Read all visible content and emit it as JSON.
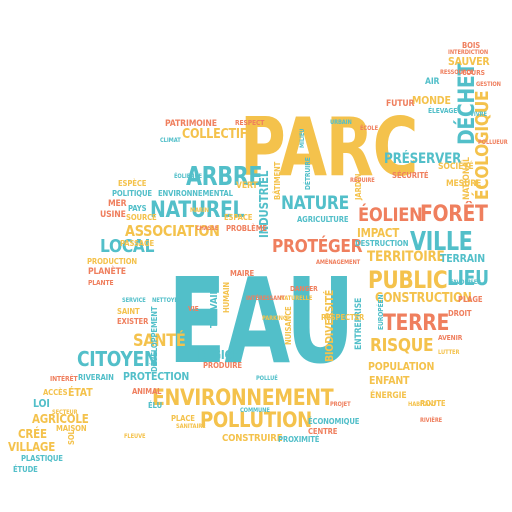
{
  "palette": {
    "yellow": "#f4c24c",
    "teal": "#52bfc9",
    "orange": "#ef7f5e"
  },
  "words": {
    "parc": "PARC",
    "eau": "EAU",
    "environnement": "ENVIRONNEMENT",
    "pollution": "POLLUTION",
    "naturel": "NATUREL",
    "arbre": "ARBRE",
    "nature": "NATURE",
    "association": "ASSOCIATION",
    "local": "LOCAL",
    "citoyen": "CITOYEN",
    "sante": "SANTÉ",
    "proteger": "PROTÉGER",
    "public": "PUBLIC",
    "lieu": "LIEU",
    "terre": "TERRE",
    "risque": "RISQUE",
    "ville": "VILLE",
    "foret": "FORÊT",
    "eolien": "ÉOLIEN",
    "dechet": "DÉCHET",
    "ecologique": "ÉCOLOGIQUE",
    "preserver": "PRÉSERVER",
    "territoire": "TERRITOIRE",
    "terrain": "TERRAIN",
    "construction": "CONSTRUCTION",
    "population": "POPULATION",
    "enfant": "ENFANT",
    "collectif": "COLLECTIF",
    "patrimoine": "PATRIMOINE",
    "industriel": "INDUSTRIEL",
    "biodiversite": "BIODIVERSITÉ",
    "entreprise": "ENTREPRISE",
    "region": "RÉGION",
    "protection": "PROTECTION",
    "agricole": "AGRICOLE",
    "village": "VILLAGE",
    "cree": "CRÉE",
    "loi": "LOI",
    "etat": "ÉTAT",
    "plastique": "PLASTIQUE",
    "etude": "ÉTUDE",
    "sauver": "SAUVER",
    "monde": "MONDE",
    "futur": "FUTUR",
    "impact": "IMPACT",
    "destruction": "DESTRUCTION",
    "planete": "PLANÈTE",
    "production": "PRODUCTION",
    "espece": "ESPÈCE",
    "politique": "POLITIQUE",
    "mer": "MER",
    "usine": "USINE",
    "pays": "PAYS",
    "source": "SOURCE",
    "environnemental": "ENVIRONNEMENTAL",
    "travail": "TRAVAIL",
    "mesure": "MESURE",
    "societe": "SOCIÉTÉ",
    "securite": "SÉCURITÉ",
    "respecter": "RESPECTER",
    "jardin": "JARDIN",
    "economique": "ÉCONOMIQUE",
    "centre": "CENTRE",
    "energie": "ÉNERGIE",
    "route": "ROUTE",
    "plage": "PLAGE",
    "droit": "DROIT",
    "air": "AIR",
    "bois": "BOIS",
    "riverain": "RIVERAIN",
    "acces": "ACCÈS",
    "interet": "INTÉRÊT",
    "maison": "MAISON",
    "sol": "SOL",
    "saint": "SAINT",
    "exister": "EXISTER",
    "developpement": "DÉVELOPPEMENT",
    "animal": "ANIMAL",
    "elu": "ÉLU",
    "place": "PLACE",
    "construire": "CONSTRUIRE",
    "proximite": "PROXIMITÉ",
    "produire": "PRODUIRE",
    "humain": "HUMAIN",
    "vert": "VERT",
    "national": "NATIONAL",
    "detruire": "DÉTRUIRE",
    "agriculture": "AGRICULTURE",
    "batiment": "BÂTIMENT",
    "respect": "RESPECT",
    "espace": "ESPACE",
    "probleme": "PROBLÈME",
    "passage": "PASSAGE",
    "plante": "PLANTE",
    "elevage": "ÉLEVAGE",
    "cours": "COURS",
    "interdiction": "INTERDICTION",
    "gestion": "GESTION",
    "avenir": "AVENIR",
    "europeen": "EUROPÉEN",
    "nuisance": "NUISANCE",
    "danger": "DANGER",
    "foret2": "AMÉNAGEMENT",
    "vivre": "VIVRE",
    "ressource": "RESSOURCE",
    "climat": "CLIMAT",
    "chasse": "CHASSE",
    "sanitaire": "SANITAIRE",
    "maire": "MAIRE",
    "marin": "MARIN",
    "fleuve": "FLEUVE",
    "ecole": "ÉCOLE",
    "commune": "COMMUNE",
    "urbain": "URBAIN",
    "parking": "PARKING",
    "pollue": "POLLUÉ",
    "riviere": "RIVIÈRE",
    "projet": "PROJET",
    "habitant": "HABITANT",
    "secteur": "SECTEUR",
    "milieu": "MILIEU",
    "vie": "VIE",
    "eolienne": "ÉOLIENNE",
    "naturelle": "NATURELLE",
    "interessant": "INTÉRESSANT",
    "reduire": "RÉDUIRE",
    "service": "SERVICE",
    "nettoyer": "NETTOYER",
    "favoriser": "FAVORISER",
    "lutter": "LUTTER",
    "pollueur": "POLLUEUR"
  }
}
